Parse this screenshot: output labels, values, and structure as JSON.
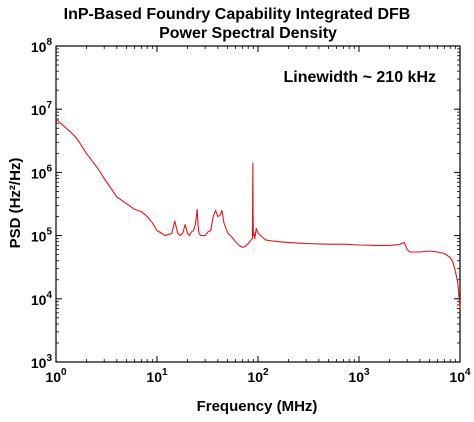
{
  "chart_data": {
    "type": "line",
    "title": [
      "InP-Based Foundry Capability Integrated DFB",
      "Power Spectral Density"
    ],
    "xlabel": "Frequency (MHz)",
    "ylabel": "PSD (Hz²/Hz)",
    "annotation": "Linewidth ~ 210 kHz",
    "x_scale": "log",
    "y_scale": "log",
    "xlim": [
      1,
      10000
    ],
    "ylim": [
      1000,
      100000000
    ],
    "x_ticks": [
      {
        "value": 1,
        "base": "10",
        "exp": "0"
      },
      {
        "value": 10,
        "base": "10",
        "exp": "1"
      },
      {
        "value": 100,
        "base": "10",
        "exp": "2"
      },
      {
        "value": 1000,
        "base": "10",
        "exp": "3"
      },
      {
        "value": 10000,
        "base": "10",
        "exp": "4"
      }
    ],
    "y_ticks": [
      {
        "value": 1000,
        "base": "10",
        "exp": "3"
      },
      {
        "value": 10000,
        "base": "10",
        "exp": "4"
      },
      {
        "value": 100000,
        "base": "10",
        "exp": "5"
      },
      {
        "value": 1000000,
        "base": "10",
        "exp": "6"
      },
      {
        "value": 10000000,
        "base": "10",
        "exp": "7"
      },
      {
        "value": 100000000,
        "base": "10",
        "exp": "8"
      }
    ],
    "grid": false,
    "line_color": "#e8131a",
    "series": [
      {
        "x": [
          1,
          1.15,
          1.3,
          1.5,
          1.7,
          2,
          2.3,
          2.7,
          3,
          3.5,
          4,
          5,
          6,
          7,
          8,
          9,
          10,
          11,
          12,
          13,
          14,
          15,
          16,
          17,
          18,
          19,
          20,
          21,
          22,
          23,
          24,
          25,
          25.5,
          26,
          27,
          28,
          30,
          32,
          34,
          36,
          38,
          40,
          42,
          44,
          46,
          50,
          55,
          60,
          65,
          70,
          75,
          80,
          85,
          88,
          89,
          89.5,
          90,
          91,
          93,
          96,
          100,
          110,
          120,
          140,
          160,
          200,
          250,
          300,
          400,
          500,
          700,
          1000,
          1500,
          2000,
          2500,
          2800,
          3000,
          3200,
          4000,
          5000,
          6000,
          7000,
          8000,
          8500,
          9000,
          9500,
          10000
        ],
        "y": [
          7000000,
          5700000,
          4800000,
          3900000,
          3000000,
          2000000,
          1500000,
          1050000,
          800000,
          560000,
          410000,
          320000,
          260000,
          240000,
          200000,
          160000,
          120000,
          110000,
          100000,
          105000,
          108000,
          170000,
          110000,
          100000,
          110000,
          150000,
          110000,
          100000,
          115000,
          120000,
          150000,
          260000,
          140000,
          110000,
          100000,
          100000,
          100000,
          115000,
          120000,
          200000,
          250000,
          200000,
          210000,
          250000,
          160000,
          110000,
          95000,
          80000,
          70000,
          65000,
          68000,
          75000,
          85000,
          90000,
          1400000,
          200000,
          100000,
          110000,
          90000,
          130000,
          110000,
          95000,
          85000,
          82000,
          80000,
          78000,
          76000,
          75000,
          74000,
          73000,
          73000,
          71000,
          70000,
          70000,
          72000,
          78000,
          60000,
          55000,
          55000,
          57000,
          55000,
          52000,
          45000,
          38000,
          27000,
          18000,
          7000
        ]
      }
    ]
  }
}
